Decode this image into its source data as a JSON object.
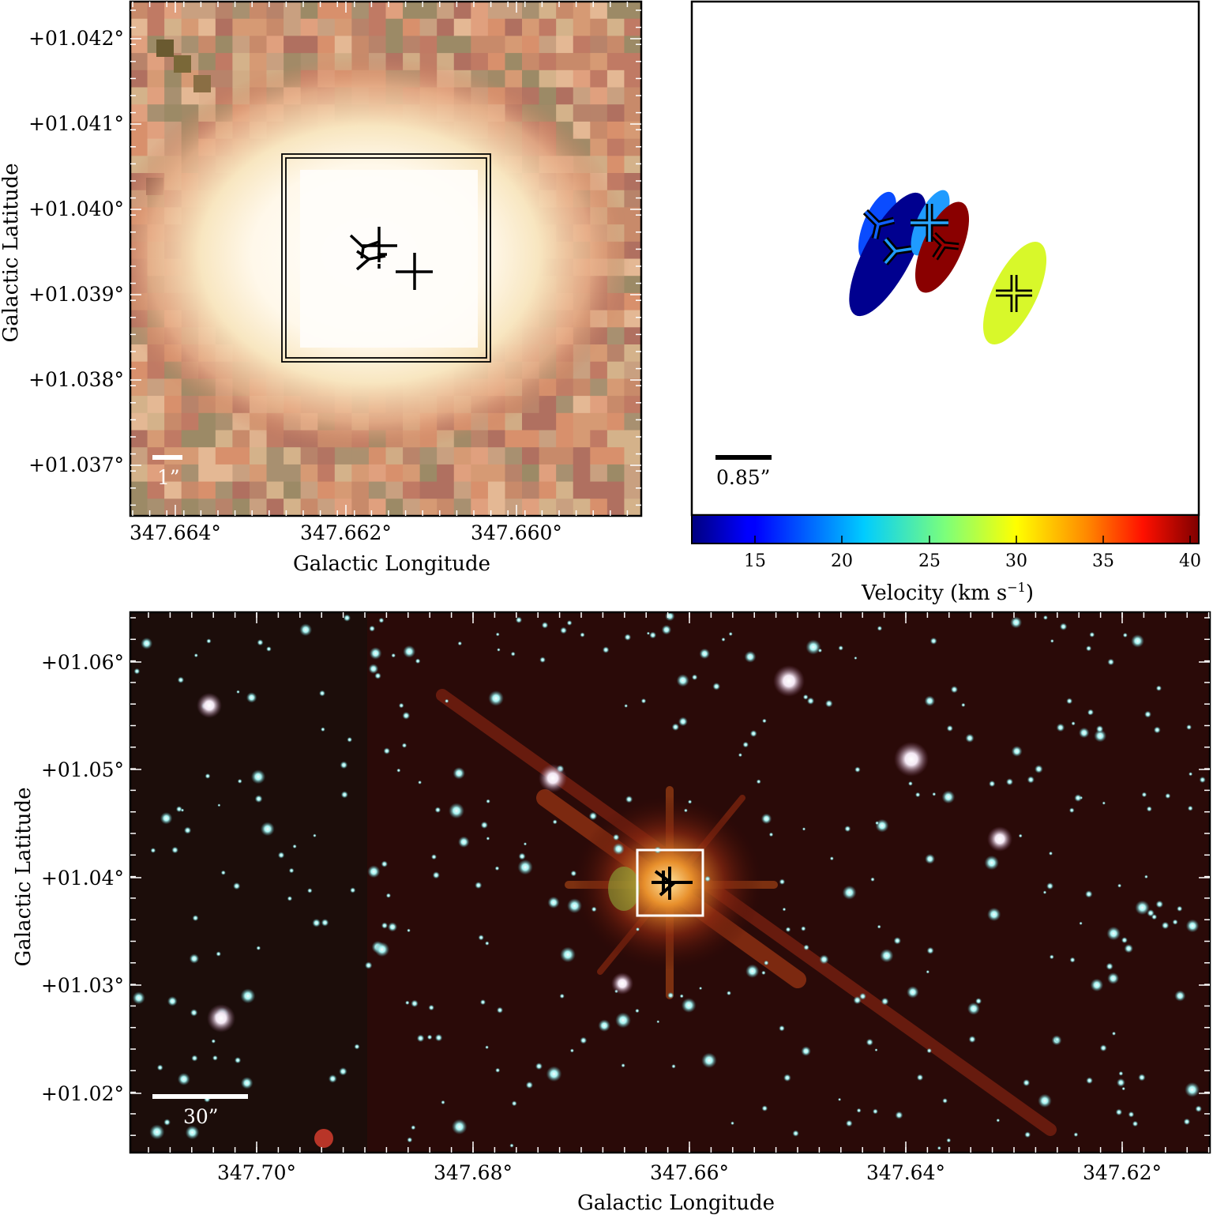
{
  "panels": {
    "top_left": {
      "xlabel": "Galactic Longitude",
      "ylabel": "Galactic Latitude",
      "xticks": [
        "347.664°",
        "347.662°",
        "347.660°"
      ],
      "yticks": [
        "+01.042°",
        "+01.041°",
        "+01.040°",
        "+01.039°",
        "+01.038°",
        "+01.037°"
      ],
      "scalebar": "1”"
    },
    "top_right": {
      "scalebar": "0.85”",
      "colorbar_label": "Velocity (km s",
      "colorbar_exp": "−1",
      "colorbar_close": ")",
      "colorbar_ticks": [
        "15",
        "20",
        "25",
        "30",
        "35",
        "40"
      ],
      "colorbar_range": [
        11.5,
        40.5
      ],
      "features": [
        {
          "marker": "Y",
          "velocity": 15
        },
        {
          "marker": "Y",
          "velocity": 22
        },
        {
          "marker": "Y",
          "velocity": 39
        },
        {
          "marker": "+",
          "velocity": 22
        },
        {
          "marker": "+",
          "velocity": 30
        }
      ]
    },
    "bottom": {
      "xlabel": "Galactic Longitude",
      "ylabel": "Galactic Latitude",
      "xticks": [
        "347.70°",
        "347.68°",
        "347.66°",
        "347.64°",
        "347.62°"
      ],
      "yticks": [
        "+01.06°",
        "+01.05°",
        "+01.04°",
        "+01.03°",
        "+01.02°"
      ],
      "scalebar": "30”"
    }
  },
  "colors": {
    "sky_dark": "#2a0a08",
    "star_cyan": "#a6f2f0",
    "glow_orange": "#ffb050"
  }
}
